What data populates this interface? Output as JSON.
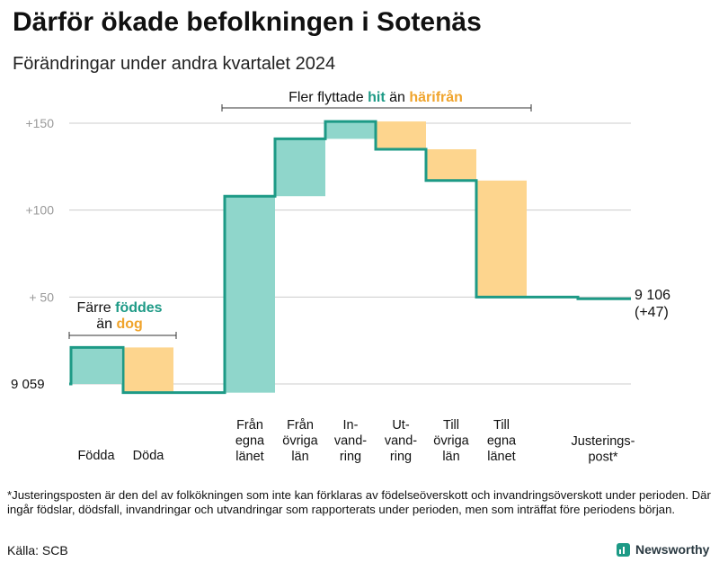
{
  "title": "Därför ökade befolkningen i Sotenäs",
  "subtitle": "Förändringar under andra kvartalet 2024",
  "footnote": "*Justeringsposten är den del av folkökningen som inte kan förklaras av födelseöverskott och invandringsöverskott under perioden. Där ingår födslar, dödsfall, invandringar och utvandringar som rapporterats under perioden, men som inträffat före periodens början.",
  "source": "Källa: SCB",
  "brand": "Newsworthy",
  "colors": {
    "positive": "#8fd6cb",
    "negative": "#fdd58e",
    "line": "#1d9a86",
    "accent_pos": "#1d9a86",
    "accent_neg": "#f0a42c",
    "grid": "#cccccc",
    "tick": "#999999"
  },
  "chart_data": {
    "type": "waterfall",
    "start_value": 9059,
    "start_label": "9 059",
    "end_value": 9106,
    "end_label": "9 106",
    "end_change_label": "(+47)",
    "y_axis": {
      "min": -5,
      "max": 160,
      "ticks": [
        0,
        50,
        100,
        150
      ],
      "tick_labels": [
        "",
        "+  50",
        "+100",
        "+150"
      ]
    },
    "steps": [
      {
        "label": [
          "Födda"
        ],
        "delta": 21
      },
      {
        "label": [
          "Döda"
        ],
        "delta": -26
      },
      {
        "label": [
          "Från",
          "egna",
          "länet"
        ],
        "delta": 113
      },
      {
        "label": [
          "Från",
          "övriga",
          "län"
        ],
        "delta": 33
      },
      {
        "label": [
          "In-",
          "vand-",
          "ring"
        ],
        "delta": 10
      },
      {
        "label": [
          "Ut-",
          "vand-",
          "ring"
        ],
        "delta": -16
      },
      {
        "label": [
          "Till",
          "övriga",
          "län"
        ],
        "delta": -18
      },
      {
        "label": [
          "Till",
          "egna",
          "länet"
        ],
        "delta": -67
      },
      {
        "label": [
          "Justerings-",
          "post*"
        ],
        "delta": -1
      }
    ],
    "annotations": [
      {
        "text_parts": [
          "Färre ",
          "föddes"
        ],
        "line2_parts": [
          "än ",
          "dog"
        ],
        "span": [
          0,
          1
        ]
      },
      {
        "text_parts": [
          "Fler flyttade ",
          "hit",
          "  än ",
          "härifrån"
        ],
        "span": [
          2,
          7
        ]
      }
    ]
  }
}
